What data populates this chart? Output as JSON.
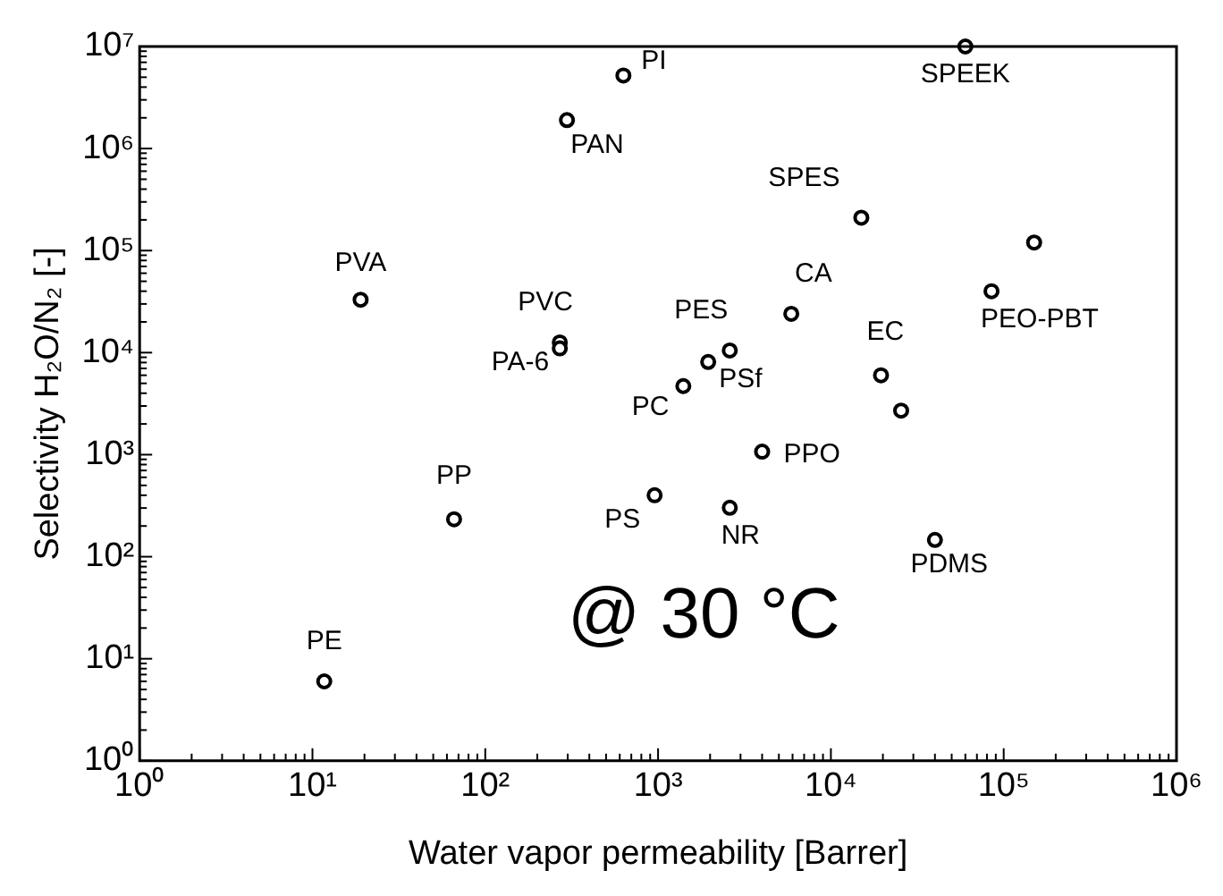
{
  "chart_data": {
    "type": "scatter",
    "xlabel": "Water vapor permeability [Barrer]",
    "ylabel": "Selectivity H₂O/N₂ [-]",
    "log": "xy",
    "grid": false,
    "legend": false,
    "marker": "circle",
    "series": [
      {
        "color": "#000000",
        "x": [
          630,
          297,
          60000,
          15000,
          150000,
          19,
          5900,
          85000,
          270,
          270,
          2600,
          1950,
          1400,
          19500,
          25500,
          4000,
          66,
          955,
          2600,
          40000,
          11.7
        ],
        "values": [
          5200000,
          1900000,
          10000000,
          210000,
          120000,
          33000,
          24000,
          40000,
          12600,
          11000,
          10500,
          8100,
          4700,
          6000,
          2700,
          1070,
          233,
          400,
          302,
          146,
          6
        ]
      }
    ],
    "xlim": [
      1,
      1000000
    ],
    "ylim": [
      1,
      10000000
    ],
    "xticks": [
      {
        "value": 1,
        "label": "10⁰"
      },
      {
        "value": 10,
        "label": "10¹"
      },
      {
        "value": 100,
        "label": "10²"
      },
      {
        "value": 1000,
        "label": "10³"
      },
      {
        "value": 10000,
        "label": "10⁴"
      },
      {
        "value": 100000,
        "label": "10⁵"
      },
      {
        "value": 1000000,
        "label": "10⁶"
      }
    ],
    "yticks": [
      {
        "value": 1,
        "label": "10⁰"
      },
      {
        "value": 10,
        "label": "10¹"
      },
      {
        "value": 100,
        "label": "10²"
      },
      {
        "value": 1000,
        "label": "10³"
      },
      {
        "value": 10000,
        "label": "10⁴"
      },
      {
        "value": 100000,
        "label": "10⁵"
      },
      {
        "value": 1000000,
        "label": "10⁶"
      },
      {
        "value": 10000000,
        "label": "10⁷"
      }
    ],
    "annotations": [
      {
        "text": "PI",
        "x": 630,
        "y": 5200000
      },
      {
        "text": "PAN",
        "x": 297,
        "y": 1900000
      },
      {
        "text": "SPEEK",
        "x": 60000,
        "y": 10000000
      },
      {
        "text": "SPES",
        "x": 15000,
        "y": 210000
      },
      {
        "text": "PVA",
        "x": 19,
        "y": 33000
      },
      {
        "text": "CA",
        "x": 5900,
        "y": 24000
      },
      {
        "text": "PEO-PBT",
        "x": 85000,
        "y": 40000
      },
      {
        "text": "PVC",
        "x": 270,
        "y": 12600
      },
      {
        "text": "PA-6",
        "x": 270,
        "y": 11000
      },
      {
        "text": "PES",
        "x": 2600,
        "y": 10500
      },
      {
        "text": "PSf",
        "x": 1950,
        "y": 8100
      },
      {
        "text": "PC",
        "x": 1400,
        "y": 4700
      },
      {
        "text": "EC",
        "x": 19500,
        "y": 6000
      },
      {
        "text": "PPO",
        "x": 4000,
        "y": 1070
      },
      {
        "text": "PP",
        "x": 66,
        "y": 233
      },
      {
        "text": "PS",
        "x": 955,
        "y": 400
      },
      {
        "text": "NR",
        "x": 2600,
        "y": 302
      },
      {
        "text": "PDMS",
        "x": 40000,
        "y": 146
      },
      {
        "text": "PE",
        "x": 11.7,
        "y": 6
      },
      "@ 30 °C"
    ]
  }
}
